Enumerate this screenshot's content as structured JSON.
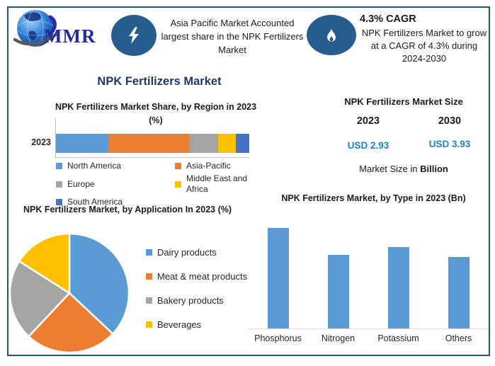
{
  "header": {
    "logo_text": "MMR",
    "highlight_text": "Asia Pacific Market Accounted largest share in the NPK Fertilizers Market",
    "cagr_title": "4.3% CAGR",
    "cagr_body": "NPK Fertilizers Market to grow at a CAGR of 4.3% during 2024-2030"
  },
  "main_title": "NPK Fertilizers Market",
  "market_size": {
    "title": "NPK Fertilizers Market Size",
    "year_left": "2023",
    "year_right": "2030",
    "value_left": "USD 2.93",
    "value_right": "USD 3.93",
    "caption_prefix": "Market Size in ",
    "caption_bold": "Billion"
  },
  "colors": {
    "frame_border": "#215968",
    "icon_ellipse": "#275c8e",
    "main_title": "#1f3864",
    "usd_value": "#1b84c4",
    "axis_line": "#bfbfbf"
  },
  "chart_data": [
    {
      "type": "bar",
      "variant": "stacked-horizontal",
      "title": "NPK Fertilizers Market Share, by Region in 2023 (%)",
      "categories": [
        "2023"
      ],
      "series": [
        {
          "name": "North America",
          "value": 27,
          "color": "#5b9bd5"
        },
        {
          "name": "Asia-Pacific",
          "value": 42,
          "color": "#ed7d31"
        },
        {
          "name": "Europe",
          "value": 15,
          "color": "#a5a5a5"
        },
        {
          "name": "Middle East and Africa",
          "value": 9,
          "color": "#ffc000"
        },
        {
          "name": "South America",
          "value": 7,
          "color": "#4472c4"
        }
      ],
      "xlim": [
        0,
        100
      ],
      "legend_position": "bottom",
      "grid": false
    },
    {
      "type": "pie",
      "title": "NPK Fertilizers Market, by Application In 2023 (%)",
      "slices": [
        {
          "label": "Dairy products",
          "value": 37,
          "color": "#5b9bd5"
        },
        {
          "label": "Meat & meat products",
          "value": 25,
          "color": "#ed7d31"
        },
        {
          "label": "Bakery products",
          "value": 22,
          "color": "#a5a5a5"
        },
        {
          "label": "Beverages",
          "value": 16,
          "color": "#ffc000"
        }
      ],
      "start_angle_deg_from_north": 0,
      "direction": "clockwise",
      "legend_position": "right"
    },
    {
      "type": "bar",
      "title": "NPK Fertilizers Market, by Type in 2023 (Bn)",
      "categories": [
        "Phosphorus",
        "Nitrogen",
        "Potassium",
        "Others"
      ],
      "values": [
        0.9,
        0.66,
        0.73,
        0.64
      ],
      "bar_color": "#5b9bd5",
      "xlabel": "",
      "ylabel": "",
      "ylim": [
        0,
        0.94
      ],
      "grid": false,
      "axis_labels_visible": false
    }
  ]
}
